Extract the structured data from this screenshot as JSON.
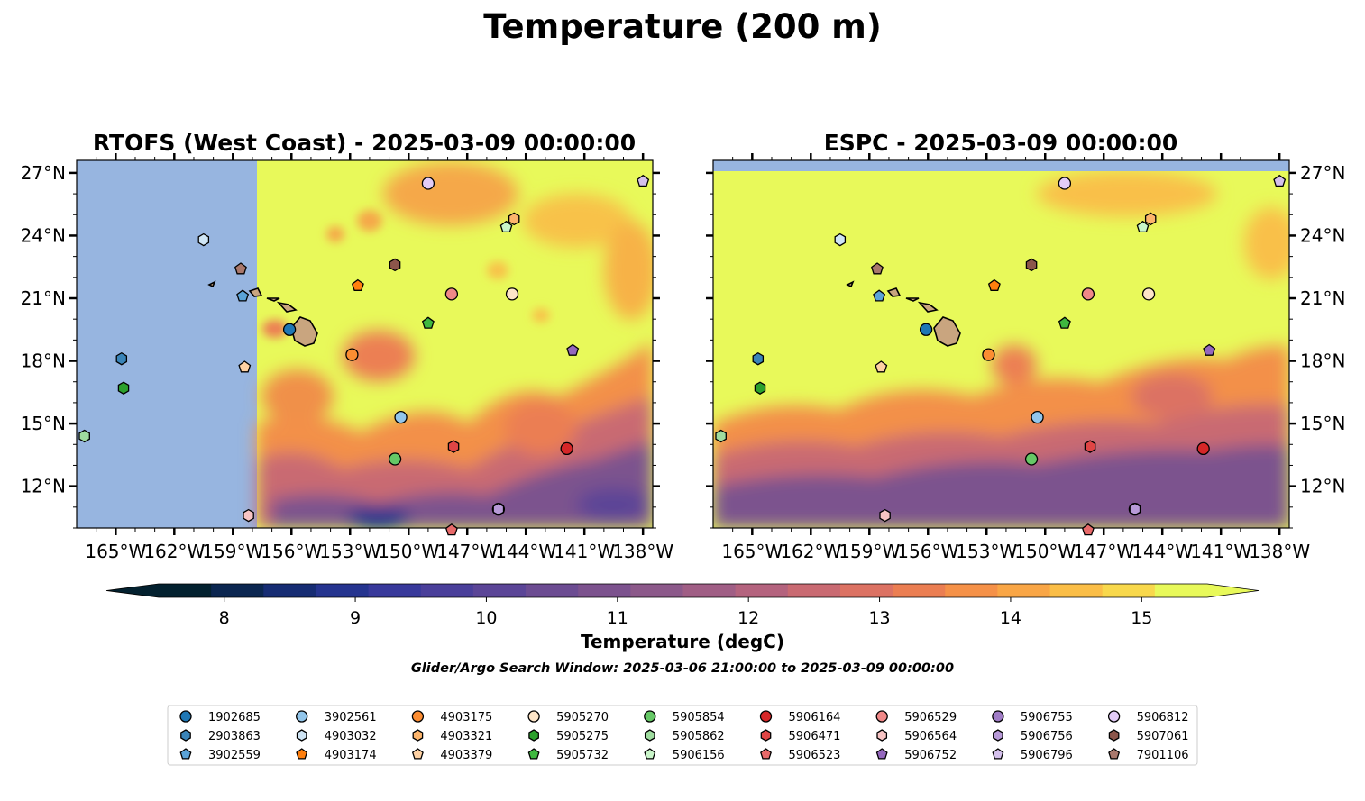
{
  "title": "Temperature (200 m)",
  "note": "Glider/Argo Search Window: 2025-03-06 21:00:00 to 2025-03-09 00:00:00",
  "chart_data": {
    "type": "heatmap",
    "panels": [
      {
        "title": "RTOFS (West Coast) - 2025-03-09 00:00:00",
        "model_coverage_west_lon": -157.6,
        "yaxis_side": "left"
      },
      {
        "title": "ESPC - 2025-03-09 00:00:00",
        "model_coverage_north_lat": 27.1,
        "yaxis_side": "right"
      }
    ],
    "xlim": [
      -167,
      -137.5
    ],
    "ylim": [
      10.0,
      27.6
    ],
    "x_ticks": [
      -165,
      -162,
      -159,
      -156,
      -153,
      -150,
      -147,
      -144,
      -141,
      -138
    ],
    "x_tick_labels": [
      "165°W",
      "162°W",
      "159°W",
      "156°W",
      "153°W",
      "150°W",
      "147°W",
      "144°W",
      "141°W",
      "138°W"
    ],
    "y_ticks": [
      27,
      24,
      21,
      18,
      15,
      12
    ],
    "y_tick_labels": [
      "27°N",
      "24°N",
      "21°N",
      "18°N",
      "15°N",
      "12°N"
    ],
    "colorbar": {
      "label": "Temperature (degC)",
      "min": 7.5,
      "max": 15.5,
      "step": 0.5,
      "ticks": [
        8,
        9,
        10,
        11,
        12,
        13,
        14,
        15
      ],
      "tick_labels": [
        "8",
        "9",
        "10",
        "11",
        "12",
        "13",
        "14",
        "15"
      ],
      "extend": "both",
      "colors": [
        "#03212f",
        "#0b2650",
        "#162c73",
        "#25348f",
        "#38399b",
        "#4a3f9a",
        "#5b4597",
        "#6c4c92",
        "#7c528e",
        "#8c598a",
        "#a05e85",
        "#b4637e",
        "#c96a72",
        "#dc7263",
        "#eb7e52",
        "#f59148",
        "#f9a646",
        "#fbbe47",
        "#f8d84c",
        "#e8f95a"
      ],
      "over_color": "#e8f95a",
      "under_color": "#03212f"
    },
    "land_color": "#c9a57f",
    "nodata_color": "#97b5e0",
    "series": [
      {
        "name": "1902685",
        "marker": "circle",
        "color": "#1f77b4",
        "lon": -156.1,
        "lat": 19.5
      },
      {
        "name": "2903863",
        "marker": "hexagon",
        "color": "#3a84b8",
        "lon": -164.7,
        "lat": 18.1
      },
      {
        "name": "3902559",
        "marker": "pentagon",
        "color": "#5aa3d8",
        "lon": -158.5,
        "lat": 21.1
      },
      {
        "name": "3902561",
        "marker": "circle",
        "color": "#92c6eb",
        "lon": -150.4,
        "lat": 15.3
      },
      {
        "name": "4903032",
        "marker": "hexagon",
        "color": "#cfe5f5",
        "lon": -160.5,
        "lat": 23.8
      },
      {
        "name": "4903174",
        "marker": "pentagon",
        "color": "#ff7f0e",
        "lon": -152.6,
        "lat": 21.6
      },
      {
        "name": "4903175",
        "marker": "circle",
        "color": "#fc8d32",
        "lon": -152.9,
        "lat": 18.3
      },
      {
        "name": "4903321",
        "marker": "hexagon",
        "color": "#fdb56c",
        "lon": -144.6,
        "lat": 24.8
      },
      {
        "name": "4903379",
        "marker": "pentagon",
        "color": "#fed1a3",
        "lon": -158.4,
        "lat": 17.7
      },
      {
        "name": "5905270",
        "marker": "circle",
        "color": "#fde5c8",
        "lon": -144.7,
        "lat": 21.2
      },
      {
        "name": "5905275",
        "marker": "hexagon",
        "color": "#2ca02c",
        "lon": -164.6,
        "lat": 16.7
      },
      {
        "name": "5905732",
        "marker": "pentagon",
        "color": "#3fb83f",
        "lon": -149.0,
        "lat": 19.8
      },
      {
        "name": "5905854",
        "marker": "circle",
        "color": "#66c866",
        "lon": -150.7,
        "lat": 13.3
      },
      {
        "name": "5905862",
        "marker": "hexagon",
        "color": "#9fdc9f",
        "lon": -166.6,
        "lat": 14.4
      },
      {
        "name": "5906156",
        "marker": "pentagon",
        "color": "#c9f5c9",
        "lon": -145.0,
        "lat": 24.4
      },
      {
        "name": "5906164",
        "marker": "circle",
        "color": "#d62728",
        "lon": -141.9,
        "lat": 13.8
      },
      {
        "name": "5906471",
        "marker": "hexagon",
        "color": "#e04545",
        "lon": -147.7,
        "lat": 13.9
      },
      {
        "name": "5906523",
        "marker": "pentagon",
        "color": "#e86a6a",
        "lon": -147.8,
        "lat": 9.9
      },
      {
        "name": "5906529",
        "marker": "circle",
        "color": "#f08888",
        "lon": -147.8,
        "lat": 21.2
      },
      {
        "name": "5906564",
        "marker": "hexagon",
        "color": "#f8c4c4",
        "lon": -158.2,
        "lat": 10.6
      },
      {
        "name": "5906752",
        "marker": "pentagon",
        "color": "#9467bd",
        "lon": -141.6,
        "lat": 18.5
      },
      {
        "name": "5906755",
        "marker": "circle",
        "color": "#a07cc6",
        "lon": -145.4,
        "lat": 10.9
      },
      {
        "name": "5906756",
        "marker": "hexagon",
        "color": "#b89ad8",
        "lon": -145.4,
        "lat": 10.9
      },
      {
        "name": "5906796",
        "marker": "pentagon",
        "color": "#d4c0ec",
        "lon": -138.0,
        "lat": 26.6
      },
      {
        "name": "5906812",
        "marker": "circle",
        "color": "#e3ccf7",
        "lon": -149.0,
        "lat": 26.5
      },
      {
        "name": "5907061",
        "marker": "hexagon",
        "color": "#8c564b",
        "lon": -150.7,
        "lat": 22.6
      },
      {
        "name": "7901106",
        "marker": "pentagon",
        "color": "#a9786c",
        "lon": -158.6,
        "lat": 22.4
      }
    ]
  }
}
